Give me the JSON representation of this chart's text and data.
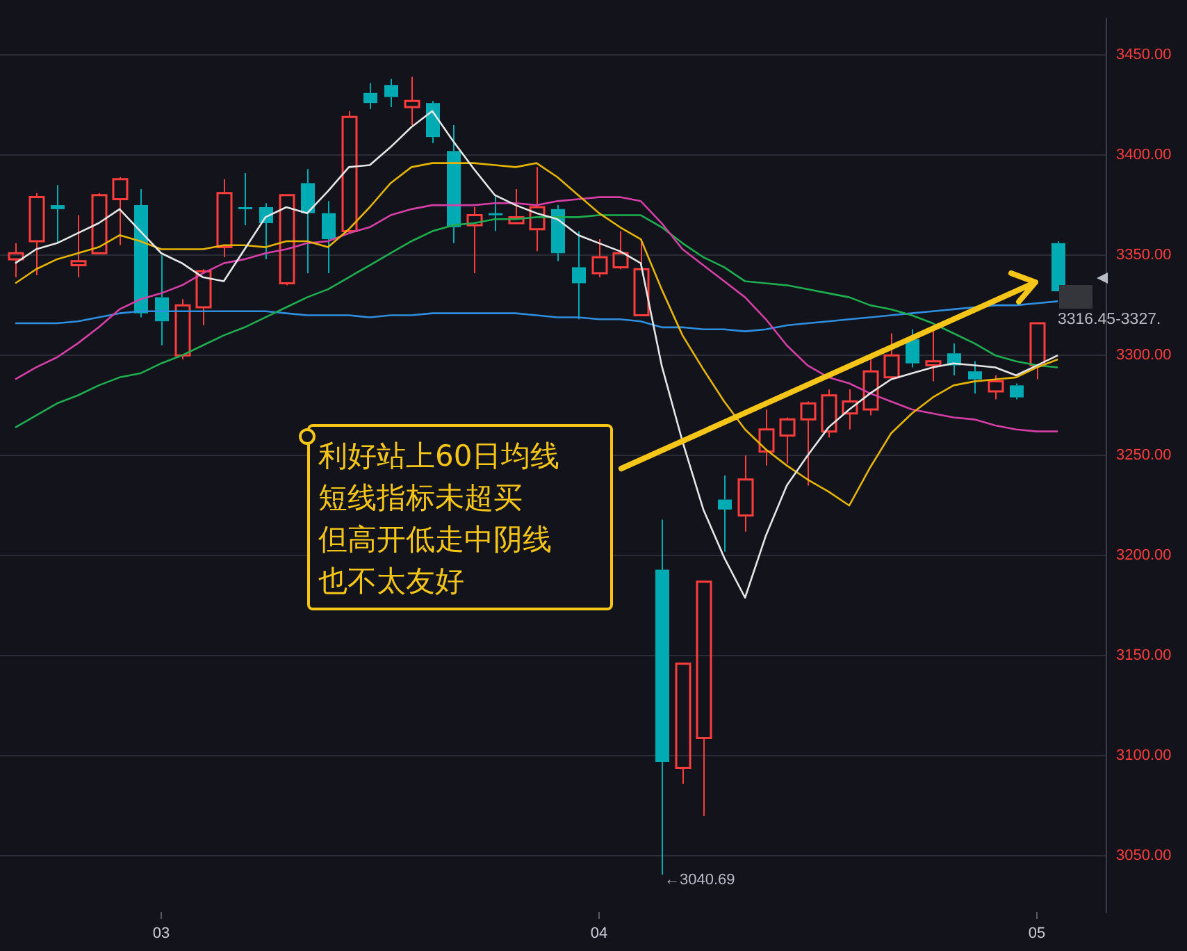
{
  "chart_data": {
    "type": "candlestick",
    "categories": [
      null,
      null,
      null,
      null,
      null,
      null,
      null,
      "03",
      null,
      null,
      null,
      null,
      null,
      null,
      null,
      null,
      null,
      null,
      null,
      null,
      null,
      null,
      null,
      null,
      null,
      null,
      null,
      null,
      "04",
      null,
      null,
      null,
      null,
      null,
      null,
      null,
      null,
      null,
      null,
      null,
      null,
      null,
      null,
      null,
      null,
      null,
      null,
      null,
      null,
      "05",
      null
    ],
    "ohlc": [
      [
        3348,
        3356,
        3339,
        3351
      ],
      [
        3357,
        3381,
        3340,
        3379
      ],
      [
        3375,
        3385,
        3356,
        3373
      ],
      [
        3345,
        3370,
        3339,
        3347
      ],
      [
        3351,
        3381,
        3351,
        3380
      ],
      [
        3378,
        3389,
        3355,
        3388
      ],
      [
        3375,
        3383,
        3319,
        3321
      ],
      [
        3329,
        3350,
        3305,
        3317
      ],
      [
        3300,
        3328,
        3298,
        3325
      ],
      [
        3324,
        3343,
        3315,
        3342
      ],
      [
        3354,
        3388,
        3349,
        3381
      ],
      [
        3374,
        3391,
        3365,
        3373
      ],
      [
        3374,
        3376,
        3348,
        3366
      ],
      [
        3336,
        3380,
        3335,
        3380
      ],
      [
        3386,
        3393,
        3341,
        3371
      ],
      [
        3371,
        3377,
        3341,
        3358
      ],
      [
        3362,
        3422,
        3361,
        3419
      ],
      [
        3431,
        3436,
        3423,
        3426
      ],
      [
        3435,
        3438,
        3424,
        3429
      ],
      [
        3424,
        3439,
        3415,
        3427
      ],
      [
        3426,
        3427,
        3406,
        3409
      ],
      [
        3402,
        3415,
        3356,
        3364
      ],
      [
        3365,
        3374,
        3341,
        3370
      ],
      [
        3371,
        3380,
        3362,
        3370
      ],
      [
        3366,
        3383,
        3366,
        3369
      ],
      [
        3363,
        3394,
        3352,
        3374
      ],
      [
        3373,
        3375,
        3347,
        3351
      ],
      [
        3344,
        3362,
        3318,
        3336
      ],
      [
        3341,
        3358,
        3339,
        3349
      ],
      [
        3344,
        3362,
        3343,
        3351
      ],
      [
        3320,
        3358,
        3320,
        3343
      ],
      [
        3193,
        3218,
        3040.69,
        3097
      ],
      [
        3094,
        3146,
        3086,
        3146
      ],
      [
        3109,
        3187,
        3070,
        3187
      ],
      [
        3228,
        3240,
        3202,
        3223
      ],
      [
        3220,
        3250,
        3212,
        3238
      ],
      [
        3252,
        3273,
        3245,
        3263
      ],
      [
        3260,
        3269,
        3246,
        3268
      ],
      [
        3268,
        3277,
        3235,
        3276
      ],
      [
        3262,
        3283,
        3259,
        3280
      ],
      [
        3271,
        3283,
        3263,
        3277
      ],
      [
        3273,
        3299,
        3270,
        3292
      ],
      [
        3289,
        3311,
        3289,
        3300
      ],
      [
        3308,
        3313,
        3294,
        3296
      ],
      [
        3295,
        3314,
        3287,
        3297
      ],
      [
        3301,
        3306,
        3290,
        3295
      ],
      [
        3292,
        3297,
        3281,
        3288
      ],
      [
        3282,
        3290,
        3278,
        3287
      ],
      [
        3285,
        3286,
        3278,
        3279
      ],
      [
        3295,
        3316,
        3288,
        3316
      ],
      [
        3356,
        3357,
        3332,
        3332
      ]
    ],
    "colors": [
      "#ff3d3d",
      "#ff3d3d",
      "#00abb3",
      "#ff3d3d",
      "#ff3d3d",
      "#ff3d3d",
      "#00abb3",
      "#00abb3",
      "#ff3d3d",
      "#ff3d3d",
      "#ff3d3d",
      "#00abb3",
      "#00abb3",
      "#ff3d3d",
      "#00abb3",
      "#00abb3",
      "#ff3d3d",
      "#00abb3",
      "#00abb3",
      "#ff3d3d",
      "#00abb3",
      "#00abb3",
      "#ff3d3d",
      "#00abb3",
      "#ff3d3d",
      "#ff3d3d",
      "#00abb3",
      "#00abb3",
      "#ff3d3d",
      "#ff3d3d",
      "#ff3d3d",
      "#00abb3",
      "#ff3d3d",
      "#ff3d3d",
      "#00abb3",
      "#ff3d3d",
      "#ff3d3d",
      "#ff3d3d",
      "#ff3d3d",
      "#ff3d3d",
      "#ff3d3d",
      "#ff3d3d",
      "#ff3d3d",
      "#00abb3",
      "#ff3d3d",
      "#00abb3",
      "#00abb3",
      "#ff3d3d",
      "#00abb3",
      "#ff3d3d",
      "#00abb3"
    ],
    "series": [
      {
        "type": "line",
        "color": "#e6e6e6",
        "values": [
          3346,
          3353,
          3356,
          3361,
          3366,
          3373,
          3362,
          3351,
          3346,
          3339,
          3337,
          3353,
          3369,
          3374,
          3371,
          3382,
          3394,
          3395,
          3404,
          3414,
          3422,
          3407,
          3393,
          3380,
          3375,
          3371,
          3368,
          3360,
          3356,
          3352,
          3346,
          3295,
          3257,
          3223,
          3199,
          3179,
          3210,
          3235,
          3250,
          3264,
          3273,
          3281,
          3288,
          3291,
          3294,
          3296,
          3295,
          3294,
          3290,
          3295,
          3300
        ]
      },
      {
        "type": "line",
        "color": "#e6b400",
        "values": [
          3336,
          3343,
          3348,
          3351,
          3354,
          3360,
          3357,
          3353,
          3353,
          3353,
          3355,
          3355,
          3354,
          3357,
          3357,
          3354,
          3363,
          3374,
          3386,
          3394,
          3396,
          3396,
          3396,
          3395,
          3394,
          3396,
          3389,
          3380,
          3371,
          3364,
          3358,
          3333,
          3310,
          3293,
          3277,
          3263,
          3253,
          3245,
          3238,
          3232,
          3225,
          3244,
          3261,
          3271,
          3279,
          3285,
          3287,
          3288,
          3289,
          3294,
          3298
        ]
      },
      {
        "type": "line",
        "color": "#d63fa6",
        "values": [
          3288,
          3294,
          3299,
          3306,
          3314,
          3323,
          3328,
          3331,
          3335,
          3341,
          3346,
          3348,
          3351,
          3353,
          3356,
          3357,
          3361,
          3364,
          3370,
          3373,
          3375,
          3375,
          3375,
          3376,
          3376,
          3375,
          3377,
          3378,
          3379,
          3379,
          3377,
          3366,
          3353,
          3345,
          3337,
          3329,
          3318,
          3305,
          3295,
          3289,
          3286,
          3281,
          3277,
          3273,
          3271,
          3269,
          3268,
          3265,
          3263,
          3262,
          3262
        ]
      },
      {
        "type": "line",
        "color": "#1fae4f",
        "values": [
          3264,
          3270,
          3276,
          3280,
          3285,
          3289,
          3291,
          3296,
          3300,
          3305,
          3310,
          3314,
          3319,
          3324,
          3329,
          3333,
          3339,
          3345,
          3351,
          3357,
          3362,
          3365,
          3366,
          3368,
          3368,
          3369,
          3369,
          3369,
          3370,
          3370,
          3370,
          3364,
          3356,
          3349,
          3344,
          3337,
          3336,
          3335,
          3333,
          3331,
          3329,
          3325,
          3323,
          3320,
          3316,
          3311,
          3306,
          3300,
          3297,
          3295,
          3294
        ]
      },
      {
        "type": "line",
        "color": "#2f8fe0",
        "values": [
          3316,
          3316,
          3316,
          3317,
          3319,
          3321,
          3322,
          3322,
          3322,
          3322,
          3322,
          3322,
          3322,
          3321,
          3320,
          3320,
          3320,
          3319,
          3320,
          3320,
          3321,
          3321,
          3321,
          3321,
          3321,
          3320,
          3319,
          3319,
          3318,
          3318,
          3317,
          3314,
          3314,
          3313,
          3313,
          3312,
          3313,
          3315,
          3316,
          3317,
          3318,
          3319,
          3320,
          3321,
          3322,
          3323,
          3324,
          3325,
          3325,
          3326,
          3327
        ]
      }
    ],
    "ylim": [
      3022,
      3468
    ],
    "yticks": [
      {
        "value": 3050,
        "label": "3050.00"
      },
      {
        "value": 3100,
        "label": "3100.00"
      },
      {
        "value": 3150,
        "label": "3150.00"
      },
      {
        "value": 3200,
        "label": "3200.00"
      },
      {
        "value": 3250,
        "label": "3250.00"
      },
      {
        "value": 3300,
        "label": "3300.00"
      },
      {
        "value": 3350,
        "label": "3350.00"
      },
      {
        "value": 3400,
        "label": "3400.00"
      },
      {
        "value": 3450,
        "label": "3450.00"
      }
    ],
    "grid": "y",
    "legend": false,
    "marker": "none",
    "line_style": "solid",
    "annotations": [
      "利好站上60日均线",
      "短线指标未超买",
      "但高开低走中阴线",
      "也不太友好",
      "←3040.69",
      "3316.45-3327."
    ]
  }
}
